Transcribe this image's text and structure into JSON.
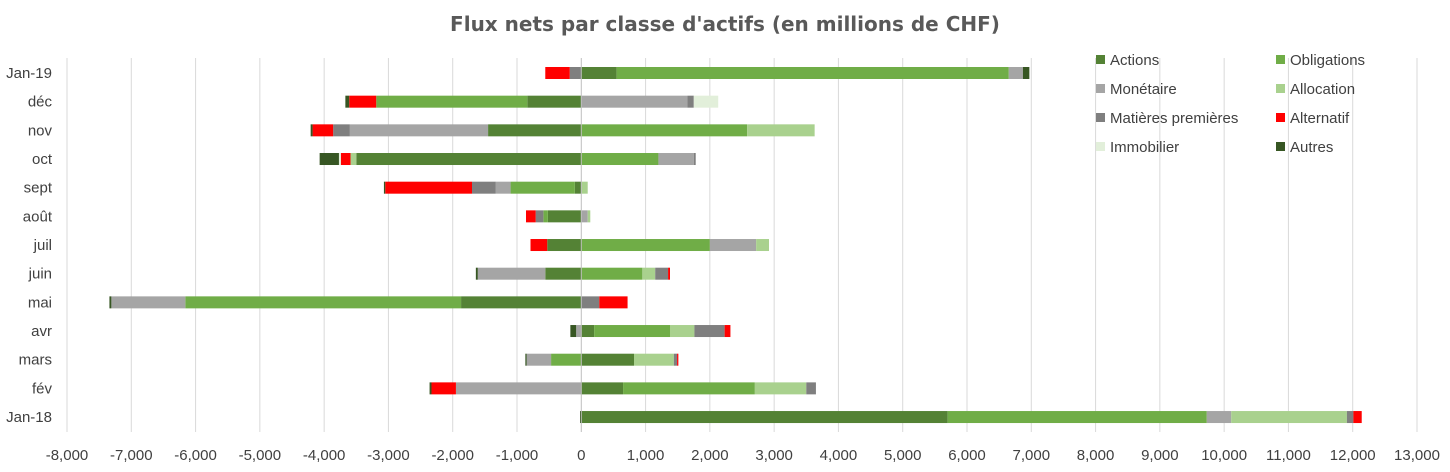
{
  "chart_data": {
    "type": "bar",
    "orientation": "horizontal",
    "stacked": true,
    "title": "Flux nets par classe d'actifs (en millions de CHF)",
    "xlim": [
      -8000,
      13000
    ],
    "x_ticks": [
      -8000,
      -7000,
      -6000,
      -5000,
      -4000,
      -3000,
      -2000,
      -1000,
      0,
      1000,
      2000,
      3000,
      4000,
      5000,
      6000,
      7000,
      8000,
      9000,
      10000,
      11000,
      12000,
      13000
    ],
    "x_tick_labels": [
      "-8,000",
      "-7,000",
      "-6,000",
      "-5,000",
      "-4,000",
      "-3,000",
      "-2,000",
      "-1,000",
      "0",
      "1,000",
      "2,000",
      "3,000",
      "4,000",
      "5,000",
      "6,000",
      "7,000",
      "8,000",
      "9,000",
      "10,000",
      "11,000",
      "12,000",
      "13,000"
    ],
    "grid": "vertical",
    "legend_position": "top-right",
    "categories": [
      "Jan-18",
      "fév",
      "mars",
      "avr",
      "mai",
      "juin",
      "juil",
      "août",
      "sept",
      "oct",
      "nov",
      "déc",
      "Jan-19"
    ],
    "series": [
      {
        "name": "Actions",
        "color": "#548235",
        "values": [
          5700,
          650,
          820,
          200,
          -1870,
          -560,
          -530,
          -520,
          -100,
          -3500,
          -1450,
          -840,
          550
        ]
      },
      {
        "name": "Obligations",
        "color": "#70AD47",
        "values": [
          4030,
          2050,
          -470,
          1180,
          -4290,
          950,
          2000,
          -70,
          -1000,
          1200,
          2580,
          -2350,
          6100
        ]
      },
      {
        "name": "Monétaire",
        "color": "#A5A5A5",
        "values": [
          380,
          -1950,
          -380,
          -80,
          -1150,
          -1050,
          720,
          100,
          -230,
          550,
          -2150,
          1650,
          220
        ]
      },
      {
        "name": "Allocation",
        "color": "#A9D18E",
        "values": [
          1800,
          800,
          620,
          380,
          0,
          200,
          200,
          40,
          100,
          -90,
          1050,
          0,
          0
        ]
      },
      {
        "name": "Matières premières",
        "color": "#7F7F7F",
        "values": [
          100,
          150,
          50,
          470,
          280,
          200,
          0,
          -120,
          -370,
          30,
          -260,
          100,
          -180
        ]
      },
      {
        "name": "Alternatif",
        "color": "#FF0000",
        "values": [
          130,
          -380,
          20,
          90,
          440,
          30,
          -260,
          -150,
          -1350,
          -150,
          -320,
          -420,
          -380
        ]
      },
      {
        "name": "Immobilier",
        "color": "#E2EFDA",
        "values": [
          0,
          0,
          0,
          0,
          0,
          0,
          0,
          0,
          0,
          -30,
          0,
          380,
          0
        ]
      },
      {
        "name": "Autres",
        "color": "#375623",
        "values": [
          -20,
          -30,
          -20,
          -90,
          -30,
          -30,
          0,
          0,
          -20,
          -300,
          -30,
          -60,
          100
        ]
      }
    ]
  }
}
